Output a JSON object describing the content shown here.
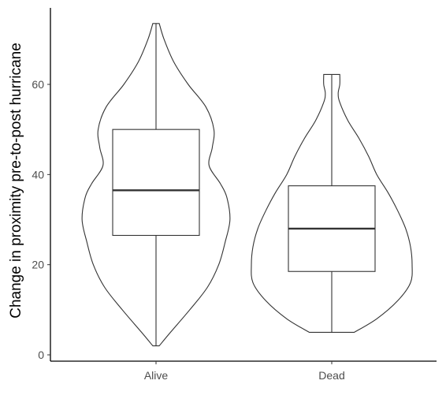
{
  "chart_data": {
    "type": "violin",
    "ylabel": "Change in proximity pre-to-post hurricane",
    "xlabel": "",
    "ylim": [
      0,
      74
    ],
    "categories": [
      "Alive",
      "Dead"
    ],
    "y_ticks": [
      0,
      20,
      40,
      60
    ],
    "y_tick_labels": [
      "0",
      "20",
      "40",
      "60"
    ],
    "series": [
      {
        "category": "Alive",
        "violin": {
          "y": [
            2,
            5,
            10,
            15,
            20,
            25,
            30,
            35,
            38,
            42,
            46,
            50,
            55,
            60,
            65,
            70,
            73.5
          ],
          "width": [
            0.04,
            0.18,
            0.42,
            0.64,
            0.78,
            0.86,
            0.92,
            0.88,
            0.8,
            0.66,
            0.7,
            0.72,
            0.62,
            0.4,
            0.22,
            0.1,
            0.04
          ]
        },
        "box": {
          "min": 2,
          "q1": 26.5,
          "median": 36.5,
          "q3": 50,
          "max": 73.5
        }
      },
      {
        "category": "Dead",
        "violin": {
          "y": [
            5,
            8,
            12,
            16,
            20,
            24,
            28,
            32,
            36,
            40,
            44,
            48,
            52,
            56,
            58,
            60,
            62.2
          ],
          "width": [
            0.28,
            0.56,
            0.82,
            0.98,
            1.0,
            0.98,
            0.92,
            0.82,
            0.7,
            0.56,
            0.46,
            0.34,
            0.2,
            0.1,
            0.08,
            0.1,
            0.1
          ]
        },
        "box": {
          "min": 5,
          "q1": 18.5,
          "median": 28,
          "q3": 37.5,
          "max": 62.2
        }
      }
    ],
    "grid": false,
    "colors": {
      "outline": "#333333",
      "fill": "#ffffff",
      "tick_label": "#4d4d4d",
      "axis": "#000000"
    }
  }
}
